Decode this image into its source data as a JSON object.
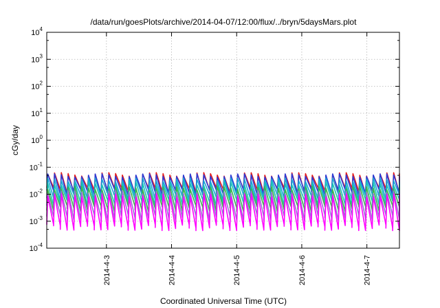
{
  "chart_data": {
    "type": "line",
    "title": "/data/run/goesPlots/archive/2014-04-07/12:00/flux/../bryn/5daysMars.plot",
    "xlabel": "Coordinated Universal Time (UTC)",
    "ylabel": "cGy/day",
    "yscale": "log",
    "ylim": [
      0.0001,
      10000
    ],
    "y_ticks": [
      {
        "base": "10",
        "exp": "-4",
        "value": 0.0001
      },
      {
        "base": "10",
        "exp": "-3",
        "value": 0.001
      },
      {
        "base": "10",
        "exp": "-2",
        "value": 0.01
      },
      {
        "base": "10",
        "exp": "-1",
        "value": 0.1
      },
      {
        "base": "10",
        "exp": "0",
        "value": 1
      },
      {
        "base": "10",
        "exp": "1",
        "value": 10
      },
      {
        "base": "10",
        "exp": "2",
        "value": 100
      },
      {
        "base": "10",
        "exp": "3",
        "value": 1000
      },
      {
        "base": "10",
        "exp": "4",
        "value": 10000
      }
    ],
    "xlim": [
      "2014-04-02T02:00",
      "2014-04-07T12:00"
    ],
    "x_ticks": [
      {
        "label": "2014-4-3",
        "value": "2014-04-03"
      },
      {
        "label": "2014-4-4",
        "value": "2014-04-04"
      },
      {
        "label": "2014-4-5",
        "value": "2014-04-05"
      },
      {
        "label": "2014-4-6",
        "value": "2014-04-06"
      },
      {
        "label": "2014-4-7",
        "value": "2014-04-07"
      }
    ],
    "grid": true,
    "cycle_hours": 2.5,
    "series": [
      {
        "color": "#e41a1c",
        "peak": 0.055,
        "trough": 0.014
      },
      {
        "color": "#2c3bd6",
        "peak": 0.05,
        "trough": 0.012
      },
      {
        "color": "#1aa5d6",
        "peak": 0.035,
        "trough": 0.008
      },
      {
        "color": "#17c1b6",
        "peak": 0.025,
        "trough": 0.005
      },
      {
        "color": "#3cb44b",
        "peak": 0.017,
        "trough": 0.003
      },
      {
        "color": "#9a6fd6",
        "peak": 0.012,
        "trough": 0.0014
      },
      {
        "color": "#ff00ff",
        "peak": 0.009,
        "trough": 0.0006
      }
    ]
  }
}
